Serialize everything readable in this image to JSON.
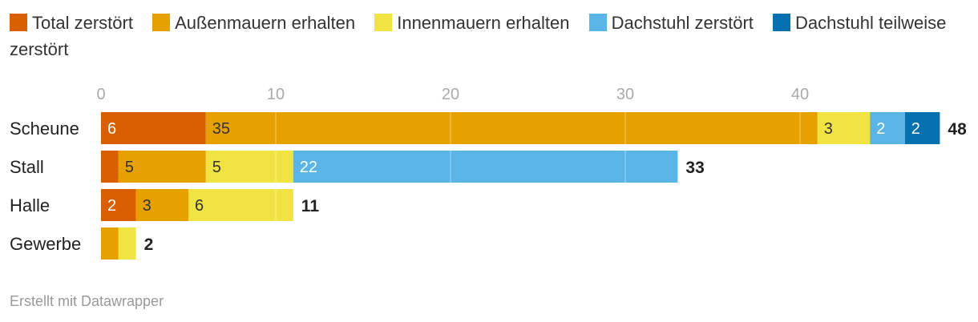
{
  "chart_data": {
    "type": "bar",
    "orientation": "horizontal",
    "stacked": true,
    "categories": [
      "Scheune",
      "Stall",
      "Halle",
      "Gewerbe"
    ],
    "series": [
      {
        "name": "Total zerstört",
        "color": "#d95f02",
        "values": [
          6,
          1,
          2,
          0
        ],
        "labels": [
          "6",
          "",
          "2",
          ""
        ]
      },
      {
        "name": "Außenmauern erhalten",
        "color": "#e6a100",
        "values": [
          35,
          5,
          3,
          1
        ],
        "labels": [
          "35",
          "5",
          "3",
          ""
        ]
      },
      {
        "name": "Innenmauern erhalten",
        "color": "#f1e442",
        "values": [
          3,
          5,
          6,
          1
        ],
        "labels": [
          "3",
          "5",
          "6",
          ""
        ]
      },
      {
        "name": "Dachstuhl zerstört",
        "color": "#5ab4e6",
        "values": [
          2,
          22,
          0,
          0
        ],
        "labels": [
          "2",
          "22",
          "",
          ""
        ]
      },
      {
        "name": "Dachstuhl teilweise zerstört",
        "color": "#0571b0",
        "values": [
          2,
          0,
          0,
          0
        ],
        "labels": [
          "2",
          "",
          "",
          ""
        ]
      }
    ],
    "totals": [
      "48",
      "33",
      "11",
      "2"
    ],
    "xlim": [
      0,
      48
    ],
    "xticks": [
      0,
      10,
      20,
      30,
      40
    ],
    "grid": true,
    "legend_position": "top"
  },
  "footer": {
    "credit": "Erstellt mit Datawrapper"
  }
}
